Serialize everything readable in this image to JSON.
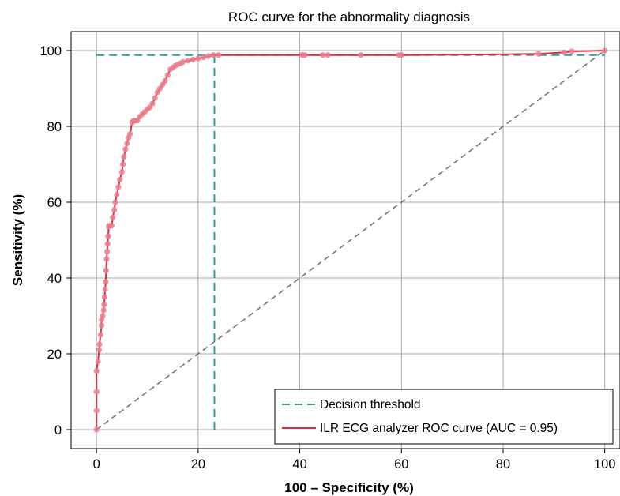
{
  "chart_data": {
    "type": "line",
    "title": "ROC curve for the abnormality diagnosis",
    "xlabel": "100 – Specificity (%)",
    "ylabel": "Sensitivity (%)",
    "xlim": [
      -5,
      103
    ],
    "ylim": [
      -5,
      105
    ],
    "xticks": [
      0,
      20,
      40,
      60,
      80,
      100
    ],
    "yticks": [
      0,
      20,
      40,
      60,
      80,
      100
    ],
    "grid": true,
    "legend_position": "bottom-right",
    "colors": {
      "roc": "#d6303e",
      "roc_markers": "#ec7d8e",
      "threshold": "#2a9d9d",
      "chance": "#777777",
      "grid": "#a8a8a8",
      "frame": "#000000"
    },
    "series": [
      {
        "name": "Decision threshold",
        "style": "dashed",
        "segments": [
          {
            "x": [
              23.2,
              23.2
            ],
            "y": [
              0,
              98.8
            ]
          },
          {
            "x": [
              0,
              100
            ],
            "y": [
              98.8,
              98.8
            ]
          }
        ]
      },
      {
        "name": "ILR ECG analyzer ROC curve (AUC = 0.95)",
        "style": "solid-with-markers",
        "x": [
          0,
          0,
          0,
          0,
          0.3,
          0.5,
          0.6,
          0.8,
          1.0,
          1.0,
          1.2,
          1.4,
          1.5,
          1.6,
          1.7,
          1.8,
          1.9,
          2.0,
          2.1,
          2.2,
          2.3,
          2.4,
          2.5,
          3.0,
          3.2,
          3.5,
          3.7,
          4.0,
          4.3,
          4.6,
          5.0,
          5.2,
          5.4,
          5.7,
          6.0,
          6.3,
          6.6,
          7.0,
          7.3,
          7.5,
          8.0,
          8.5,
          9.0,
          9.5,
          10.0,
          10.5,
          11.0,
          11.5,
          12.0,
          12.5,
          13.0,
          13.5,
          14.0,
          14.5,
          15.0,
          15.5,
          16.0,
          16.5,
          17.0,
          18.0,
          19.0,
          20.0,
          21.0,
          22.0,
          23.0,
          24.0,
          40.5,
          41.0,
          44.5,
          45.5,
          52.0,
          59.5,
          60.0,
          87.0,
          92.0,
          93.5,
          100
        ],
        "y": [
          0,
          5,
          10,
          15.5,
          18,
          21,
          22.5,
          25,
          27.5,
          29,
          30,
          31.5,
          33,
          35,
          37,
          39,
          42,
          45,
          47,
          49,
          51,
          53.5,
          53.8,
          53.8,
          56,
          58,
          60,
          62,
          64,
          66,
          68,
          70,
          72,
          74,
          75.5,
          77,
          78,
          81,
          81.5,
          81.5,
          81.5,
          82.5,
          83.2,
          83.8,
          84.5,
          85,
          86,
          87.5,
          89,
          90,
          91,
          92,
          93.5,
          95,
          95.5,
          96,
          96.3,
          96.6,
          97,
          97.3,
          97.6,
          97.9,
          98.2,
          98.5,
          98.8,
          98.8,
          98.8,
          98.8,
          98.8,
          98.8,
          98.8,
          98.8,
          98.8,
          99.1,
          99.5,
          99.8,
          100
        ]
      },
      {
        "name": "",
        "style": "dashed",
        "x": [
          0,
          100
        ],
        "y": [
          0,
          100
        ]
      }
    ]
  }
}
